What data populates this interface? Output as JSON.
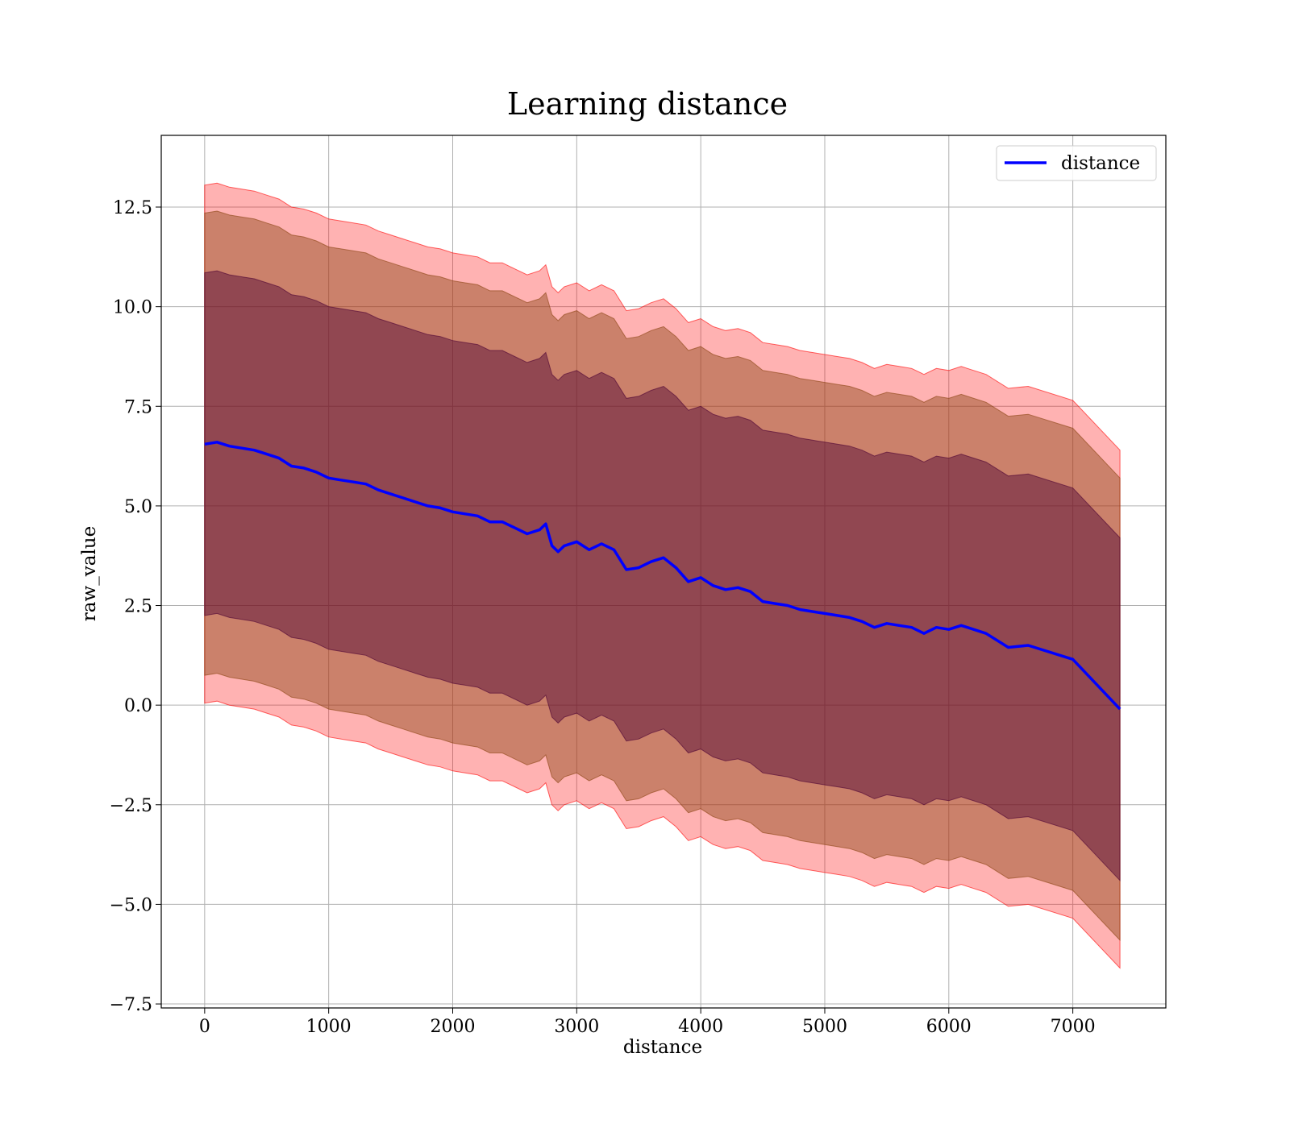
{
  "chart_data": {
    "type": "line",
    "title": "Learning distance",
    "xlabel": "distance",
    "ylabel": "raw_value",
    "xlim": [
      -350,
      7750
    ],
    "ylim": [
      -7.6,
      14.3
    ],
    "xticks": [
      0,
      1000,
      2000,
      3000,
      4000,
      5000,
      6000,
      7000
    ],
    "xtick_labels": [
      "0",
      "1000",
      "2000",
      "3000",
      "4000",
      "5000",
      "6000",
      "7000"
    ],
    "yticks": [
      -7.5,
      -5.0,
      -2.5,
      0.0,
      2.5,
      5.0,
      7.5,
      10.0,
      12.5
    ],
    "ytick_labels": [
      "−7.5",
      "−5.0",
      "−2.5",
      "0.0",
      "2.5",
      "5.0",
      "7.5",
      "10.0",
      "12.5"
    ],
    "grid": true,
    "legend_position": "top-right",
    "colors": {
      "line": "#0000ff",
      "band_outer": "#ff0000",
      "band_middle": "#8b4513",
      "band_inner": "#4b0033"
    },
    "x": [
      0,
      100,
      200,
      300,
      400,
      500,
      600,
      700,
      800,
      900,
      1000,
      1100,
      1200,
      1300,
      1400,
      1500,
      1600,
      1700,
      1800,
      1900,
      2000,
      2100,
      2200,
      2300,
      2400,
      2500,
      2600,
      2700,
      2750,
      2800,
      2850,
      2900,
      3000,
      3100,
      3200,
      3300,
      3400,
      3500,
      3600,
      3700,
      3800,
      3900,
      4000,
      4100,
      4200,
      4300,
      4400,
      4500,
      4600,
      4700,
      4800,
      4900,
      5000,
      5100,
      5200,
      5300,
      5400,
      5500,
      5600,
      5700,
      5800,
      5900,
      6000,
      6100,
      6150,
      6300,
      6480,
      6640,
      7000,
      7380
    ],
    "series": [
      {
        "name": "distance",
        "values": [
          6.55,
          6.6,
          6.5,
          6.45,
          6.4,
          6.3,
          6.2,
          6.0,
          5.95,
          5.85,
          5.7,
          5.65,
          5.6,
          5.55,
          5.4,
          5.3,
          5.2,
          5.1,
          5.0,
          4.95,
          4.85,
          4.8,
          4.75,
          4.6,
          4.6,
          4.45,
          4.3,
          4.4,
          4.55,
          4.0,
          3.85,
          4.0,
          4.1,
          3.9,
          4.05,
          3.9,
          3.4,
          3.45,
          3.6,
          3.7,
          3.45,
          3.1,
          3.2,
          3.0,
          2.9,
          2.95,
          2.85,
          2.6,
          2.55,
          2.5,
          2.4,
          2.35,
          2.3,
          2.25,
          2.2,
          2.1,
          1.95,
          2.05,
          2.0,
          1.95,
          1.8,
          1.95,
          1.9,
          2.0,
          1.95,
          1.8,
          1.45,
          1.5,
          1.15,
          -0.1
        ]
      }
    ],
    "bands": [
      {
        "sigma": 3,
        "upper_offset": 6.5,
        "lower_offset": -6.5
      },
      {
        "sigma": 2,
        "upper_offset": 5.8,
        "lower_offset": -5.8
      },
      {
        "sigma": 1,
        "upper_offset": 4.3,
        "lower_offset": -4.3
      }
    ]
  }
}
